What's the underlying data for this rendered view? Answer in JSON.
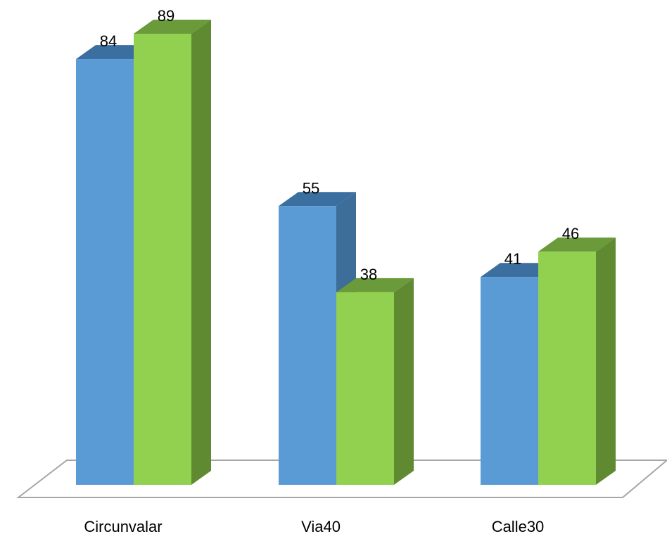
{
  "chart_data": {
    "type": "bar",
    "style": "3d-clustered-column",
    "categories": [
      "Circunvalar",
      "Via40",
      "Calle30"
    ],
    "series": [
      {
        "values": [
          84,
          55,
          41
        ],
        "color": "#5b9bd5",
        "top_color": "#3a6f9f",
        "side_color": "#3d6d99"
      },
      {
        "values": [
          89,
          38,
          46
        ],
        "color": "#92d050",
        "top_color": "#6a9a3a",
        "side_color": "#5f8a32"
      }
    ],
    "title": "",
    "xlabel": "",
    "ylabel": "",
    "ylim": [
      0,
      89
    ],
    "grid": false,
    "legend": "none"
  }
}
